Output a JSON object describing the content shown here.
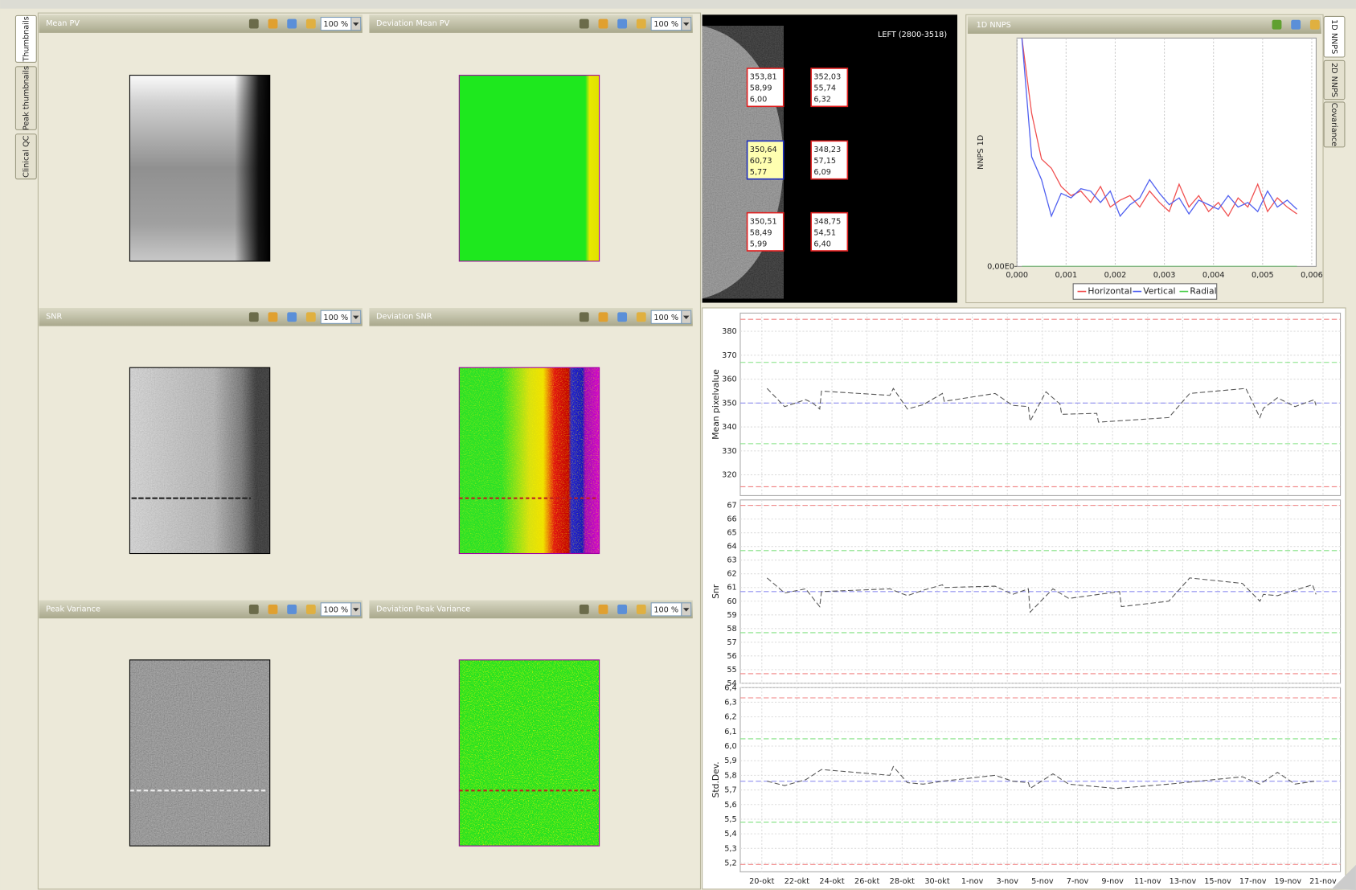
{
  "tabs_left": [
    "Thumbnails",
    "Peak thumbnails",
    "Clinical QC"
  ],
  "tabs_right": [
    "1D NNPS",
    "2D NNPS",
    "Covariance"
  ],
  "panels": [
    {
      "title": "Mean PV",
      "zoom": "100 %"
    },
    {
      "title": "Deviation Mean PV",
      "zoom": "100 %"
    },
    {
      "title": "SNR",
      "zoom": "100 %"
    },
    {
      "title": "Deviation SNR",
      "zoom": "100 %"
    },
    {
      "title": "Peak Variance",
      "zoom": "100 %"
    },
    {
      "title": "Deviation Peak Variance",
      "zoom": "100 %"
    }
  ],
  "mammogram": {
    "label": "LEFT  (2800-3518)",
    "boxes": [
      {
        "lines": [
          "353,81",
          "58,99",
          "6,00"
        ],
        "selected": false
      },
      {
        "lines": [
          "352,03",
          "55,74",
          "6,32"
        ],
        "selected": false
      },
      {
        "lines": [
          "350,64",
          "60,73",
          "5,77"
        ],
        "selected": true
      },
      {
        "lines": [
          "348,23",
          "57,15",
          "6,09"
        ],
        "selected": false
      },
      {
        "lines": [
          "350,51",
          "58,49",
          "5,99"
        ],
        "selected": false
      },
      {
        "lines": [
          "348,75",
          "54,51",
          "6,40"
        ],
        "selected": false
      }
    ]
  },
  "chart_data": [
    {
      "type": "line",
      "title": "1D NNPS",
      "ylabel": "NNPS 1D",
      "grid": true,
      "legend": "bottom",
      "x": [
        0.0001,
        0.0003,
        0.0005,
        0.0007,
        0.0009,
        0.0011,
        0.0013,
        0.0015,
        0.0017,
        0.0019,
        0.0021,
        0.0023,
        0.0025,
        0.0027,
        0.0029,
        0.0031,
        0.0033,
        0.0035,
        0.0037,
        0.0039,
        0.0041,
        0.0043,
        0.0045,
        0.0047,
        0.0049,
        0.0051,
        0.0053,
        0.0055,
        0.0057
      ],
      "xlim": [
        0,
        0.00609
      ],
      "xticks": [
        {
          "value": 0,
          "label": "0,000"
        },
        {
          "value": 0.001,
          "label": "0,001"
        },
        {
          "value": 0.002,
          "label": "0,002"
        },
        {
          "value": 0.003,
          "label": "0,003"
        },
        {
          "value": 0.004,
          "label": "0,004"
        },
        {
          "value": 0.005,
          "label": "0,005"
        },
        {
          "value": 0.006,
          "label": "0,006"
        }
      ],
      "ylim": [
        0,
        1
      ],
      "yticks": [
        {
          "value": 0,
          "label": "0,00E0"
        }
      ],
      "series": [
        {
          "name": "Horizontal",
          "color": "#f05050",
          "values": [
            1.0,
            0.67,
            0.47,
            0.43,
            0.35,
            0.31,
            0.33,
            0.28,
            0.35,
            0.26,
            0.29,
            0.31,
            0.26,
            0.33,
            0.28,
            0.24,
            0.36,
            0.26,
            0.31,
            0.24,
            0.28,
            0.22,
            0.3,
            0.26,
            0.36,
            0.24,
            0.3,
            0.26,
            0.23
          ]
        },
        {
          "name": "Vertical",
          "color": "#5060f0",
          "values": [
            1.0,
            0.48,
            0.38,
            0.22,
            0.32,
            0.3,
            0.34,
            0.33,
            0.28,
            0.33,
            0.22,
            0.27,
            0.3,
            0.38,
            0.32,
            0.27,
            0.3,
            0.23,
            0.29,
            0.27,
            0.25,
            0.31,
            0.26,
            0.28,
            0.24,
            0.33,
            0.26,
            0.29,
            0.25
          ]
        },
        {
          "name": "Radial",
          "color": "#50d050",
          "values": [
            0,
            0,
            0,
            0,
            0,
            0,
            0,
            0,
            0,
            0,
            0,
            0,
            0,
            0,
            0,
            0,
            0,
            0,
            0,
            0,
            0,
            0,
            0,
            0,
            0,
            0,
            0,
            0,
            0
          ]
        }
      ]
    },
    {
      "type": "timeseries",
      "ylabel": "Mean pixelvalue",
      "grid": true,
      "xlim": [
        -1.23,
        32.99
      ],
      "ylim": [
        311.3,
        387.6
      ],
      "yticks": [
        320,
        330,
        340,
        350,
        360,
        370,
        380
      ],
      "ref_lines": [
        {
          "value": 385,
          "color": "#f08080"
        },
        {
          "value": 315,
          "color": "#f08080"
        },
        {
          "value": 367,
          "color": "#80e080"
        },
        {
          "value": 333,
          "color": "#80e080"
        },
        {
          "value": 350,
          "color": "#9090f0"
        }
      ],
      "x": [
        0.3,
        1.3,
        2.5,
        2.9,
        3.3,
        3.4,
        7.3,
        7.5,
        8.3,
        9.2,
        10.3,
        10.4,
        13.3,
        14.3,
        15.2,
        15.3,
        16.2,
        17.0,
        17.1,
        19.1,
        19.2,
        23.2,
        24.4,
        27.6,
        28.4,
        28.6,
        29.4,
        30.4,
        31.5,
        31.6
      ],
      "series": [
        {
          "color": "#555555",
          "values": [
            356.1,
            348.5,
            351.4,
            350,
            347.5,
            355,
            353.2,
            356.1,
            347.5,
            349.3,
            354,
            350.7,
            354,
            349,
            348.5,
            342.4,
            354.7,
            349.6,
            345.3,
            345.7,
            342,
            343.9,
            354,
            356.1,
            343.9,
            347.8,
            352.2,
            348.5,
            351.4,
            349
          ]
        }
      ]
    },
    {
      "type": "timeseries",
      "ylabel": "Snr",
      "grid": true,
      "xlim": [
        -1.23,
        32.99
      ],
      "ylim": [
        54,
        67.4
      ],
      "yticks": [
        54,
        55,
        56,
        57,
        58,
        59,
        60,
        61,
        62,
        63,
        64,
        65,
        66,
        67
      ],
      "ref_lines": [
        {
          "value": 67,
          "color": "#f08080"
        },
        {
          "value": 54.7,
          "color": "#f08080"
        },
        {
          "value": 63.7,
          "color": "#80e080"
        },
        {
          "value": 57.7,
          "color": "#80e080"
        },
        {
          "value": 60.7,
          "color": "#9090f0"
        }
      ],
      "x": [
        0.3,
        1.3,
        2.5,
        3.3,
        3.4,
        7.3,
        8.3,
        9.2,
        10.3,
        10.4,
        13.3,
        14.3,
        15.2,
        15.3,
        16.6,
        17.5,
        20.4,
        20.5,
        23.2,
        24.4,
        27.4,
        28.4,
        28.6,
        29.4,
        30.4,
        31.4,
        31.6
      ],
      "series": [
        {
          "color": "#555555",
          "values": [
            61.7,
            60.6,
            60.9,
            59.6,
            60.7,
            60.9,
            60.4,
            60.8,
            61.2,
            61.0,
            61.1,
            60.5,
            60.9,
            59.2,
            60.9,
            60.2,
            60.7,
            59.6,
            60.0,
            61.7,
            61.3,
            60.0,
            60.5,
            60.4,
            60.8,
            61.2,
            60.5
          ]
        }
      ]
    },
    {
      "type": "timeseries",
      "ylabel": "Std.Dev.",
      "grid": true,
      "xlim": [
        -1.23,
        32.99
      ],
      "ylim": [
        5.14,
        6.4
      ],
      "yticks": [
        {
          "value": 5.2,
          "label": "5,2"
        },
        {
          "value": 5.3,
          "label": "5,3"
        },
        {
          "value": 5.4,
          "label": "5,4"
        },
        {
          "value": 5.5,
          "label": "5,5"
        },
        {
          "value": 5.6,
          "label": "5,6"
        },
        {
          "value": 5.7,
          "label": "5,7"
        },
        {
          "value": 5.8,
          "label": "5,8"
        },
        {
          "value": 5.9,
          "label": "5,9"
        },
        {
          "value": 6.0,
          "label": "6,0"
        },
        {
          "value": 6.1,
          "label": "6,1"
        },
        {
          "value": 6.2,
          "label": "6,2"
        },
        {
          "value": 6.3,
          "label": "6,3"
        },
        {
          "value": 6.4,
          "label": "6,4"
        }
      ],
      "xticks": [
        {
          "value": 0,
          "label": "20-okt"
        },
        {
          "value": 2,
          "label": "22-okt"
        },
        {
          "value": 4,
          "label": "24-okt"
        },
        {
          "value": 6,
          "label": "26-okt"
        },
        {
          "value": 8,
          "label": "28-okt"
        },
        {
          "value": 10,
          "label": "30-okt"
        },
        {
          "value": 12,
          "label": "1-nov"
        },
        {
          "value": 14,
          "label": "3-nov"
        },
        {
          "value": 16,
          "label": "5-nov"
        },
        {
          "value": 18,
          "label": "7-nov"
        },
        {
          "value": 20,
          "label": "9-nov"
        },
        {
          "value": 22,
          "label": "11-nov"
        },
        {
          "value": 24,
          "label": "13-nov"
        },
        {
          "value": 26,
          "label": "15-nov"
        },
        {
          "value": 28,
          "label": "17-nov"
        },
        {
          "value": 30,
          "label": "19-nov"
        },
        {
          "value": 32,
          "label": "21-nov"
        }
      ],
      "ref_lines": [
        {
          "value": 6.33,
          "color": "#f08080"
        },
        {
          "value": 5.19,
          "color": "#f08080"
        },
        {
          "value": 6.05,
          "color": "#80e080"
        },
        {
          "value": 5.48,
          "color": "#80e080"
        },
        {
          "value": 5.76,
          "color": "#9090f0"
        }
      ],
      "x": [
        0.3,
        1.3,
        2.5,
        3.4,
        7.3,
        7.5,
        8.3,
        9.2,
        10.3,
        13.3,
        14.3,
        15.2,
        15.3,
        16.6,
        17.5,
        20.2,
        23.2,
        27.4,
        28.4,
        29.4,
        30.4,
        31.5
      ],
      "series": [
        {
          "color": "#555555",
          "values": [
            5.76,
            5.73,
            5.77,
            5.84,
            5.8,
            5.86,
            5.75,
            5.74,
            5.76,
            5.8,
            5.76,
            5.75,
            5.71,
            5.81,
            5.74,
            5.71,
            5.74,
            5.79,
            5.74,
            5.82,
            5.74,
            5.76
          ]
        }
      ]
    }
  ]
}
